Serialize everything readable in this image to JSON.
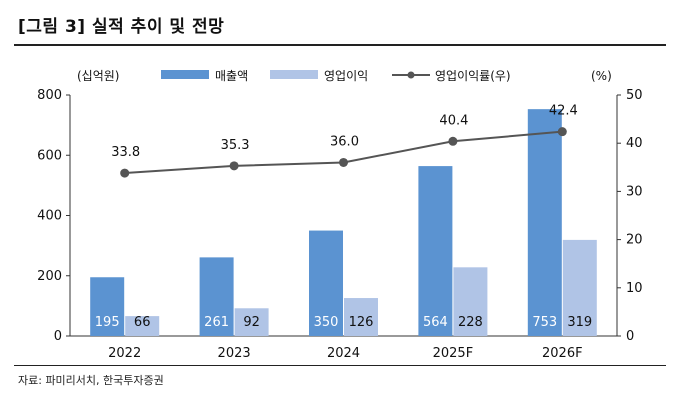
{
  "header": {
    "title": "[그림 3] 실적 추이 및 전망",
    "source": "자료: 파미리서치, 한국투자증권"
  },
  "colors": {
    "revenue": "#5b93d1",
    "op_income": "#b0c4e6",
    "op_margin": "#555555"
  },
  "chart_data": {
    "type": "bar",
    "categories": [
      "2022",
      "2023",
      "2024",
      "2025F",
      "2026F"
    ],
    "series": [
      {
        "name": "매출액",
        "type": "bar",
        "axis": "left",
        "values": [
          195,
          261,
          350,
          564,
          753
        ]
      },
      {
        "name": "영업이익",
        "type": "bar",
        "axis": "left",
        "values": [
          66,
          92,
          126,
          228,
          319
        ]
      },
      {
        "name": "영업이익률(우)",
        "type": "line",
        "axis": "right",
        "values": [
          33.8,
          35.3,
          36.0,
          40.4,
          42.4
        ]
      }
    ],
    "ylabel_left": "(십억원)",
    "ylabel_right": "(%)",
    "ylim_left": [
      0,
      800
    ],
    "ylim_right": [
      0,
      50
    ],
    "yticks_left": [
      "0",
      "200",
      "400",
      "600",
      "800"
    ],
    "yticks_right": [
      "0",
      "10",
      "20",
      "30",
      "40",
      "50"
    ],
    "legend_position": "top",
    "grid": false
  }
}
